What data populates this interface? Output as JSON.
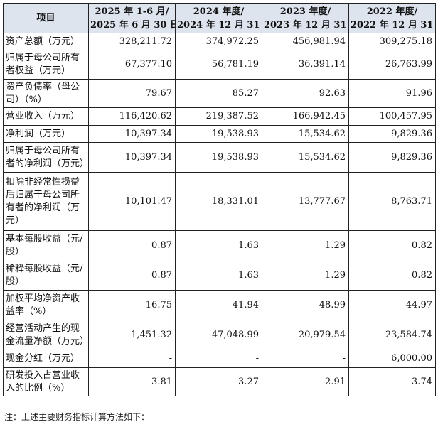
{
  "table": {
    "headers": [
      [
        "项目",
        ""
      ],
      [
        "2025 年 1-6 月/",
        "2025 年 6 月 30 日"
      ],
      [
        "2024 年度/",
        "2024 年 12 月 31 日"
      ],
      [
        "2023 年度/",
        "2023 年 12 月 31 日"
      ],
      [
        "2022 年度/",
        "2022 年 12 月 31 日"
      ]
    ],
    "rows": [
      {
        "label": "资产总额（万元）",
        "values": [
          "328,211.72",
          "374,972.25",
          "456,981.94",
          "309,275.18"
        ]
      },
      {
        "label": "归属于母公司所有者权益（万元）",
        "values": [
          "67,377.10",
          "56,781.19",
          "36,391.14",
          "26,763.99"
        ]
      },
      {
        "label": "资产负债率（母公司）（%）",
        "values": [
          "79.67",
          "85.27",
          "92.63",
          "91.96"
        ]
      },
      {
        "label": "营业收入（万元）",
        "values": [
          "116,420.62",
          "219,387.52",
          "166,942.45",
          "100,457.95"
        ]
      },
      {
        "label": "净利润（万元）",
        "values": [
          "10,397.34",
          "19,538.93",
          "15,534.62",
          "9,829.36"
        ]
      },
      {
        "label": "归属于母公司所有者的净利润（万元）",
        "values": [
          "10,397.34",
          "19,538.93",
          "15,534.62",
          "9,829.36"
        ]
      },
      {
        "label": "扣除非经常性损益后归属于母公司所有者的净利润（万元）",
        "values": [
          "10,101.47",
          "18,331.01",
          "13,777.67",
          "8,763.71"
        ]
      },
      {
        "label": "基本每股收益（元/股）",
        "values": [
          "0.87",
          "1.63",
          "1.29",
          "0.82"
        ]
      },
      {
        "label": "稀释每股收益（元/股）",
        "values": [
          "0.87",
          "1.63",
          "1.29",
          "0.82"
        ]
      },
      {
        "label": "加权平均净资产收益率（%）",
        "values": [
          "16.75",
          "41.94",
          "48.99",
          "44.97"
        ]
      },
      {
        "label": "经营活动产生的现金流量净额（万元）",
        "values": [
          "1,451.32",
          "-47,048.99",
          "20,979.54",
          "23,584.74"
        ]
      },
      {
        "label": "现金分红（万元）",
        "values": [
          "-",
          "-",
          "-",
          "6,000.00"
        ]
      },
      {
        "label": "研发投入占营业收入的比例（%）",
        "values": [
          "3.81",
          "3.27",
          "2.91",
          "3.74"
        ]
      }
    ]
  },
  "note": "注：上述主要财务指标计算方法如下："
}
